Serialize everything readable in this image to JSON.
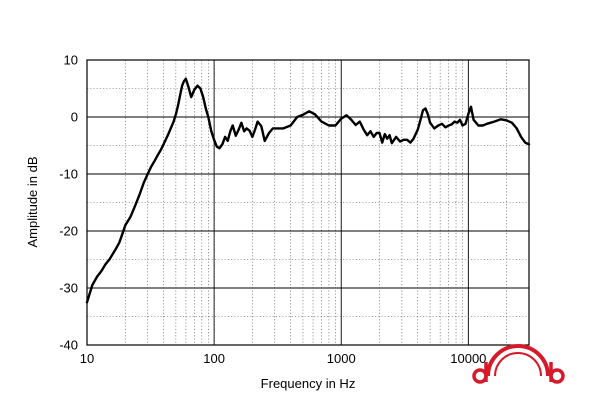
{
  "chart_data": {
    "type": "line",
    "xlabel": "Frequency in Hz",
    "ylabel": "Amplitude in dB",
    "x_scale": "log",
    "xlim": [
      10,
      30000
    ],
    "ylim": [
      -40,
      10
    ],
    "x_ticks": [
      {
        "value": 10,
        "label": "10"
      },
      {
        "value": 100,
        "label": "100"
      },
      {
        "value": 1000,
        "label": "1000"
      },
      {
        "value": 10000,
        "label": "10000"
      }
    ],
    "y_ticks": [
      {
        "value": 10,
        "label": "10"
      },
      {
        "value": 0,
        "label": "0"
      },
      {
        "value": -10,
        "label": "-10"
      },
      {
        "value": -20,
        "label": "-20"
      },
      {
        "value": -30,
        "label": "-30"
      },
      {
        "value": -40,
        "label": "-40"
      }
    ],
    "grid": true,
    "series": [
      {
        "color": "#000000",
        "x": [
          10,
          11,
          12,
          13,
          14,
          15,
          16,
          17,
          18,
          19,
          20,
          22,
          24,
          26,
          28,
          30,
          32,
          34,
          36,
          38,
          40,
          42,
          44,
          46,
          48,
          50,
          52,
          54,
          56,
          58,
          60,
          63,
          66,
          70,
          74,
          78,
          82,
          86,
          90,
          95,
          100,
          105,
          110,
          116,
          122,
          128,
          134,
          140,
          148,
          156,
          164,
          172,
          180,
          190,
          200,
          210,
          220,
          235,
          250,
          270,
          290,
          320,
          350,
          400,
          450,
          500,
          560,
          620,
          700,
          800,
          900,
          1000,
          1100,
          1200,
          1300,
          1400,
          1500,
          1600,
          1700,
          1800,
          1900,
          2000,
          2100,
          2200,
          2300,
          2400,
          2500,
          2700,
          2900,
          3100,
          3300,
          3500,
          3700,
          4000,
          4200,
          4400,
          4600,
          4800,
          5000,
          5400,
          5800,
          6200,
          6600,
          7000,
          7400,
          7800,
          8200,
          8600,
          9000,
          9500,
          10000,
          10500,
          11000,
          12000,
          13000,
          14000,
          15000,
          16000,
          17000,
          18000,
          19000,
          20000,
          22000,
          24000,
          26000,
          28000,
          30000
        ],
        "y": [
          -32.5,
          -29.5,
          -28,
          -27,
          -25.8,
          -25,
          -24,
          -23,
          -22,
          -20.5,
          -19,
          -17.5,
          -15.5,
          -13.5,
          -11.5,
          -10,
          -8.7,
          -7.7,
          -6.7,
          -5.8,
          -4.8,
          -3.8,
          -2.8,
          -1.8,
          -0.8,
          0.5,
          2,
          3.8,
          5.5,
          6.3,
          6.7,
          5.2,
          3.5,
          4.8,
          5.5,
          5,
          3.5,
          1.5,
          0,
          -2.5,
          -4,
          -5.2,
          -5.5,
          -4.8,
          -3.5,
          -4.2,
          -2.5,
          -1.5,
          -3.3,
          -2.2,
          -1,
          -2.5,
          -2,
          -2.4,
          -3.5,
          -2.2,
          -0.8,
          -1.6,
          -4.2,
          -2.8,
          -2,
          -2,
          -2,
          -1.5,
          0,
          0.4,
          1,
          0.5,
          -0.8,
          -1.5,
          -1.5,
          -0.3,
          0.3,
          -0.5,
          -1.4,
          -0.8,
          -2.2,
          -3.2,
          -2.5,
          -3.5,
          -2.8,
          -2.8,
          -4.5,
          -3,
          -3.8,
          -3.2,
          -4.6,
          -3.5,
          -4.3,
          -4,
          -4,
          -4.5,
          -3.8,
          -2.2,
          -0.5,
          1.2,
          1.5,
          0.5,
          -1,
          -2,
          -1.5,
          -1.2,
          -1.8,
          -1.5,
          -1.3,
          -0.8,
          -1,
          -0.5,
          -1.5,
          -1.2,
          0.5,
          1.8,
          -0.5,
          -1.5,
          -1.5,
          -1.2,
          -1,
          -0.8,
          -0.6,
          -0.4,
          -0.5,
          -0.6,
          -1,
          -2,
          -3.5,
          -4.5,
          -4.8
        ]
      }
    ]
  },
  "logo": {
    "text": "db",
    "color": "#d61a2a"
  }
}
